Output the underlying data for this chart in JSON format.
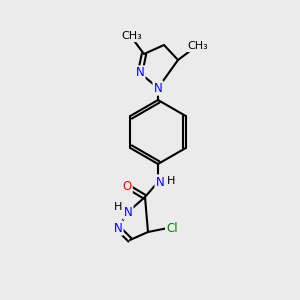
{
  "background_color": "#ebebeb",
  "bond_color": "#000000",
  "bond_lw": 1.5,
  "atom_colors": {
    "N": "#0000ff",
    "O": "#ff0000",
    "Cl": "#008000",
    "C": "#000000",
    "H": "#000000"
  },
  "font_size": 8.5
}
